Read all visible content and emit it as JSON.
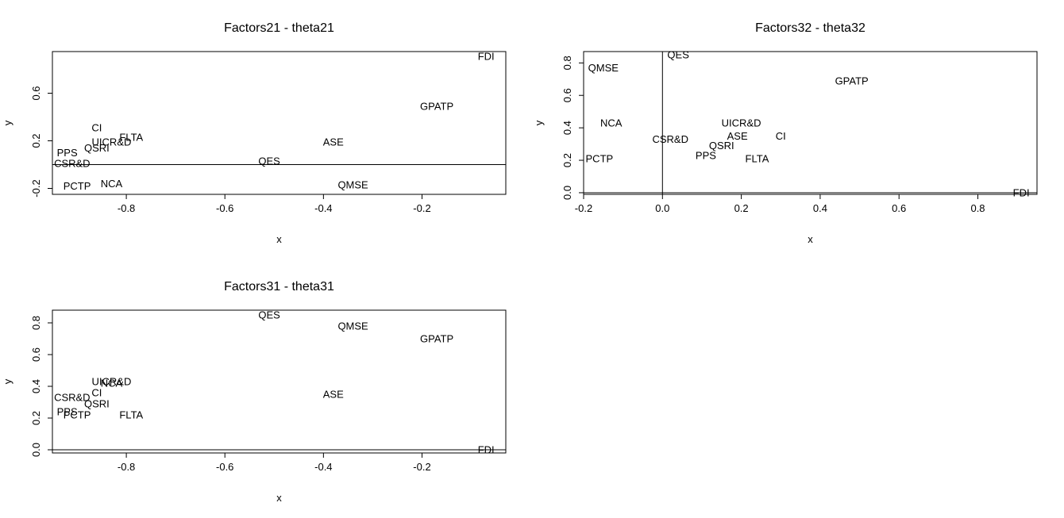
{
  "chart_data": [
    {
      "type": "scatter",
      "title": "Factors21 - theta21",
      "xlabel": "x",
      "ylabel": "y",
      "xlim": [
        -0.95,
        -0.03
      ],
      "ylim": [
        -0.25,
        0.95
      ],
      "xticks": [
        -0.8,
        -0.6,
        -0.4,
        -0.2
      ],
      "xtick_labels": [
        "-0.8",
        "-0.6",
        "-0.4",
        "-0.2"
      ],
      "yticks": [
        -0.2,
        0.2,
        0.6
      ],
      "ytick_labels": [
        "-0.2",
        "0.2",
        "0.6"
      ],
      "reference_lines": [
        {
          "orientation": "horizontal",
          "value": 0.0
        }
      ],
      "points": [
        {
          "label": "FDI",
          "x": -0.07,
          "y": 0.91
        },
        {
          "label": "GPATP",
          "x": -0.17,
          "y": 0.49
        },
        {
          "label": "CI",
          "x": -0.86,
          "y": 0.31
        },
        {
          "label": "FLTA",
          "x": -0.79,
          "y": 0.23
        },
        {
          "label": "UICR&D",
          "x": -0.83,
          "y": 0.19
        },
        {
          "label": "ASE",
          "x": -0.38,
          "y": 0.19
        },
        {
          "label": "QSRI",
          "x": -0.86,
          "y": 0.14
        },
        {
          "label": "PPS",
          "x": -0.92,
          "y": 0.1
        },
        {
          "label": "CSR&D",
          "x": -0.91,
          "y": 0.01
        },
        {
          "label": "QES",
          "x": -0.51,
          "y": 0.03
        },
        {
          "label": "PCTP",
          "x": -0.9,
          "y": -0.18
        },
        {
          "label": "NCA",
          "x": -0.83,
          "y": -0.16
        },
        {
          "label": "QMSE",
          "x": -0.34,
          "y": -0.17
        }
      ]
    },
    {
      "type": "scatter",
      "title": "Factors32 - theta32",
      "xlabel": "x",
      "ylabel": "y",
      "xlim": [
        -0.2,
        0.95
      ],
      "ylim": [
        -0.01,
        0.87
      ],
      "xticks": [
        -0.2,
        0.0,
        0.2,
        0.4,
        0.6,
        0.8
      ],
      "xtick_labels": [
        "-0.2",
        "0.0",
        "0.2",
        "0.4",
        "0.6",
        "0.8"
      ],
      "yticks": [
        0.0,
        0.2,
        0.4,
        0.6,
        0.8
      ],
      "ytick_labels": [
        "0.0",
        "0.2",
        "0.4",
        "0.6",
        "0.8"
      ],
      "reference_lines": [
        {
          "orientation": "horizontal",
          "value": 0.0
        },
        {
          "orientation": "vertical",
          "value": 0.0
        }
      ],
      "points": [
        {
          "label": "QES",
          "x": 0.04,
          "y": 0.85
        },
        {
          "label": "QMSE",
          "x": -0.15,
          "y": 0.77
        },
        {
          "label": "GPATP",
          "x": 0.48,
          "y": 0.69
        },
        {
          "label": "NCA",
          "x": -0.13,
          "y": 0.43
        },
        {
          "label": "UICR&D",
          "x": 0.2,
          "y": 0.43
        },
        {
          "label": "ASE",
          "x": 0.19,
          "y": 0.35
        },
        {
          "label": "CI",
          "x": 0.3,
          "y": 0.35
        },
        {
          "label": "CSR&D",
          "x": 0.02,
          "y": 0.33
        },
        {
          "label": "QSRI",
          "x": 0.15,
          "y": 0.29
        },
        {
          "label": "PPS",
          "x": 0.11,
          "y": 0.23
        },
        {
          "label": "FLTA",
          "x": 0.24,
          "y": 0.21
        },
        {
          "label": "PCTP",
          "x": -0.16,
          "y": 0.21
        },
        {
          "label": "FDI",
          "x": 0.91,
          "y": 0.0
        }
      ]
    },
    {
      "type": "scatter",
      "title": "Factors31 - theta31",
      "xlabel": "x",
      "ylabel": "y",
      "xlim": [
        -0.95,
        -0.03
      ],
      "ylim": [
        -0.02,
        0.88
      ],
      "xticks": [
        -0.8,
        -0.6,
        -0.4,
        -0.2
      ],
      "xtick_labels": [
        "-0.8",
        "-0.6",
        "-0.4",
        "-0.2"
      ],
      "yticks": [
        0.0,
        0.2,
        0.4,
        0.6,
        0.8
      ],
      "ytick_labels": [
        "0.0",
        "0.2",
        "0.4",
        "0.6",
        "0.8"
      ],
      "reference_lines": [
        {
          "orientation": "horizontal",
          "value": 0.0
        }
      ],
      "points": [
        {
          "label": "QES",
          "x": -0.51,
          "y": 0.85
        },
        {
          "label": "QMSE",
          "x": -0.34,
          "y": 0.78
        },
        {
          "label": "GPATP",
          "x": -0.17,
          "y": 0.7
        },
        {
          "label": "UICR&D",
          "x": -0.83,
          "y": 0.43
        },
        {
          "label": "NCA",
          "x": -0.83,
          "y": 0.42
        },
        {
          "label": "CI",
          "x": -0.86,
          "y": 0.36
        },
        {
          "label": "ASE",
          "x": -0.38,
          "y": 0.35
        },
        {
          "label": "CSR&D",
          "x": -0.91,
          "y": 0.33
        },
        {
          "label": "QSRI",
          "x": -0.86,
          "y": 0.29
        },
        {
          "label": "PPS",
          "x": -0.92,
          "y": 0.24
        },
        {
          "label": "PCTP",
          "x": -0.9,
          "y": 0.22
        },
        {
          "label": "FLTA",
          "x": -0.79,
          "y": 0.22
        },
        {
          "label": "FDI",
          "x": -0.07,
          "y": 0.0
        }
      ]
    }
  ]
}
